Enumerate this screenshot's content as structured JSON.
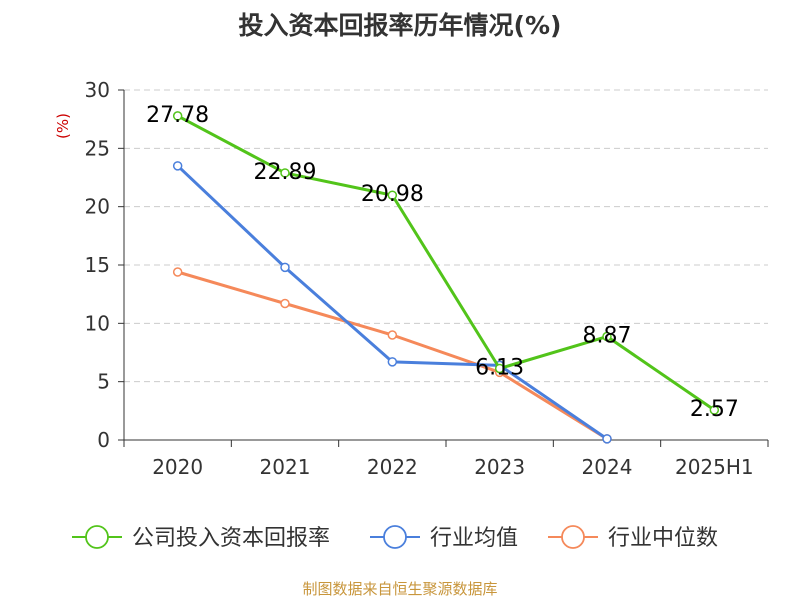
{
  "chart_data": {
    "type": "line",
    "title": "投入资本回报率历年情况(%)",
    "ylabel": "(%)",
    "xlabel": "",
    "categories": [
      "2020",
      "2021",
      "2022",
      "2023",
      "2024",
      "2025H1"
    ],
    "ylim": [
      0,
      30
    ],
    "yticks": [
      0,
      5,
      10,
      15,
      20,
      25,
      30
    ],
    "grid": true,
    "legend_position": "bottom",
    "series": [
      {
        "name": "公司投入资本回报率",
        "color": "#52c41a",
        "values": [
          27.78,
          22.89,
          20.98,
          6.13,
          8.87,
          2.57
        ],
        "labels": [
          "27.78",
          "22.89",
          "20.98",
          "6.13",
          "8.87",
          "2.57"
        ]
      },
      {
        "name": "行业均值",
        "color": "#4a7fdc",
        "values": [
          23.5,
          14.8,
          6.7,
          6.4,
          0.1,
          null
        ]
      },
      {
        "name": "行业中位数",
        "color": "#f5895a",
        "values": [
          14.4,
          11.7,
          9.0,
          5.8,
          0.1,
          null
        ]
      }
    ]
  },
  "colors": {
    "axis": "#333333",
    "grid": "#cccccc",
    "ylabel": "#cc0000",
    "source": "#c8963c"
  },
  "source": "制图数据来自恒生聚源数据库"
}
